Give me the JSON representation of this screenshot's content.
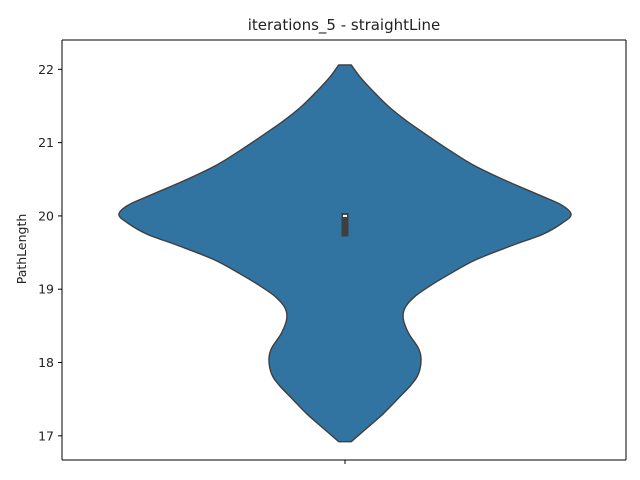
{
  "chart_data": {
    "type": "violin",
    "title": "iterations_5 - straightLine",
    "xlabel": "",
    "ylabel": "PathLength",
    "ylim": [
      16.67,
      22.4
    ],
    "yticks": [
      17,
      18,
      19,
      20,
      21,
      22
    ],
    "xticks": [
      ""
    ],
    "grid": false,
    "colors": {
      "violin_fill": "#3274a1",
      "violin_edge": "#3f3f3f",
      "box": "#3f3f3f",
      "median": "#ffffff"
    },
    "series": [
      {
        "category": "",
        "min": 16.92,
        "max": 22.06,
        "q1": 19.72,
        "median": 20.0,
        "q3": 20.04,
        "density": [
          {
            "y": 16.92,
            "w": 0.048
          },
          {
            "y": 17.1,
            "w": 0.165
          },
          {
            "y": 17.3,
            "w": 0.294
          },
          {
            "y": 17.5,
            "w": 0.404
          },
          {
            "y": 17.7,
            "w": 0.511
          },
          {
            "y": 17.85,
            "w": 0.566
          },
          {
            "y": 18.05,
            "w": 0.585
          },
          {
            "y": 18.2,
            "w": 0.563
          },
          {
            "y": 18.4,
            "w": 0.489
          },
          {
            "y": 18.6,
            "w": 0.448
          },
          {
            "y": 18.75,
            "w": 0.463
          },
          {
            "y": 18.9,
            "w": 0.537
          },
          {
            "y": 19.05,
            "w": 0.658
          },
          {
            "y": 19.2,
            "w": 0.798
          },
          {
            "y": 19.4,
            "w": 1.004
          },
          {
            "y": 19.6,
            "w": 1.29
          },
          {
            "y": 19.75,
            "w": 1.522
          },
          {
            "y": 19.9,
            "w": 1.669
          },
          {
            "y": 20.02,
            "w": 1.739
          },
          {
            "y": 20.15,
            "w": 1.665
          },
          {
            "y": 20.3,
            "w": 1.474
          },
          {
            "y": 20.5,
            "w": 1.213
          },
          {
            "y": 20.7,
            "w": 0.981
          },
          {
            "y": 20.9,
            "w": 0.8
          },
          {
            "y": 21.1,
            "w": 0.632
          },
          {
            "y": 21.3,
            "w": 0.471
          },
          {
            "y": 21.5,
            "w": 0.331
          },
          {
            "y": 21.7,
            "w": 0.217
          },
          {
            "y": 21.9,
            "w": 0.114
          },
          {
            "y": 22.06,
            "w": 0.048
          }
        ]
      }
    ]
  }
}
